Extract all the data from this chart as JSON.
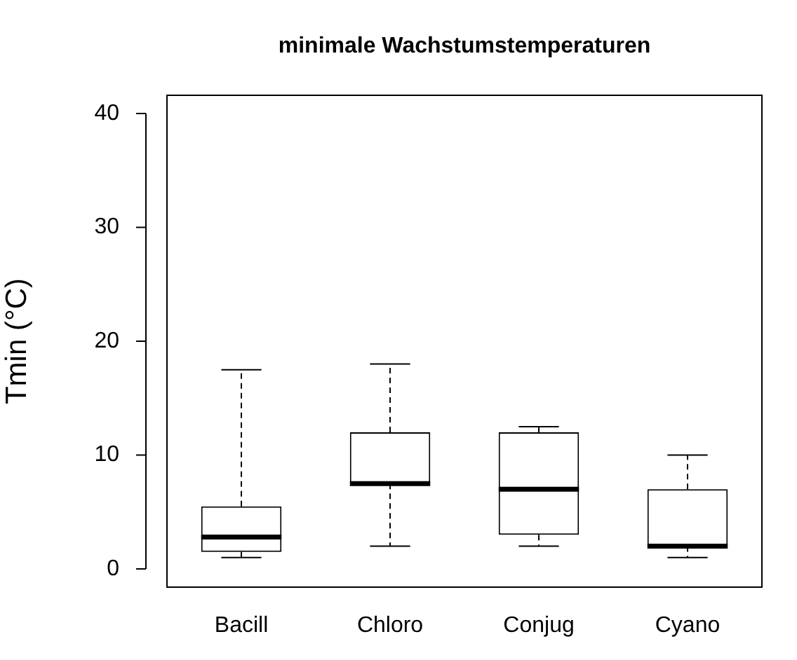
{
  "chart_data": {
    "type": "box",
    "title": "minimale Wachstumstemperaturen",
    "ylabel": "Tmin (°C)",
    "categories": [
      "Bacill",
      "Chloro",
      "Conjug",
      "Cyano"
    ],
    "boxes": [
      {
        "low": 1,
        "q1": 1.5,
        "median": 2.8,
        "q3": 5.5,
        "high": 17.5
      },
      {
        "low": 2,
        "q1": 7.5,
        "median": 7.5,
        "q3": 12,
        "high": 18
      },
      {
        "low": 2,
        "q1": 3,
        "median": 7,
        "q3": 12,
        "high": 12.5
      },
      {
        "low": 1,
        "q1": 2,
        "median": 2,
        "q3": 7,
        "high": 10
      }
    ],
    "ylim": [
      -1.6,
      41.6
    ],
    "yticks": [
      0,
      10,
      20,
      30,
      40
    ],
    "grid": false,
    "legend": false
  }
}
